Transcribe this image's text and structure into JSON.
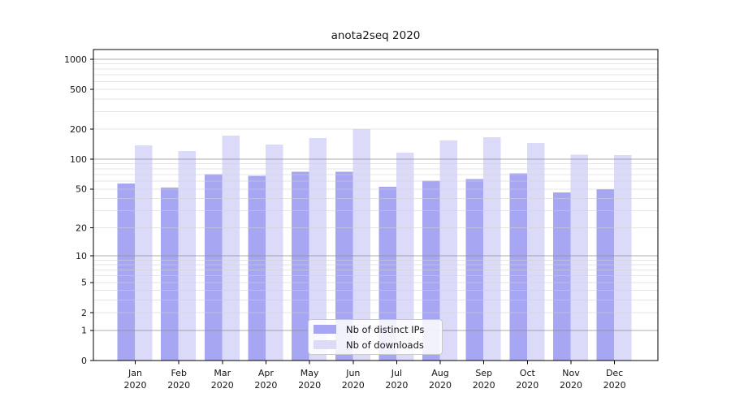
{
  "chart_data": {
    "type": "bar",
    "title": "anota2seq 2020",
    "xlabel": "",
    "ylabel": "",
    "categories": [
      "Jan",
      "Feb",
      "Mar",
      "Apr",
      "May",
      "Jun",
      "Jul",
      "Aug",
      "Sep",
      "Oct",
      "Nov",
      "Dec"
    ],
    "category_year": "2020",
    "series": [
      {
        "name": "Nb of distinct IPs",
        "color": "#a6a6f2",
        "values": [
          57,
          52,
          71,
          68,
          75,
          75,
          53,
          61,
          63,
          72,
          46,
          50
        ]
      },
      {
        "name": "Nb of downloads",
        "color": "#dbdbf9",
        "values": [
          138,
          121,
          173,
          140,
          163,
          200,
          117,
          154,
          166,
          146,
          111,
          110
        ]
      }
    ],
    "yscale": "log1p",
    "ylim": [
      0,
      1250
    ],
    "yticks": [
      0,
      1,
      2,
      5,
      10,
      20,
      50,
      100,
      200,
      500,
      1000
    ],
    "minor_yticks": [
      3,
      4,
      6,
      7,
      8,
      9,
      30,
      40,
      60,
      70,
      80,
      90,
      300,
      400,
      600,
      700,
      800,
      900
    ],
    "major_grid_values": [
      1,
      10,
      100,
      1000
    ],
    "grid": true,
    "legend_position": "lower center"
  },
  "colors": {
    "background": "#ffffff",
    "spine": "#000000",
    "major_grid": "#8f8f8f",
    "minor_grid": "#cfcfcf",
    "text": "#161616",
    "legend_border": "#c9c9c9"
  }
}
